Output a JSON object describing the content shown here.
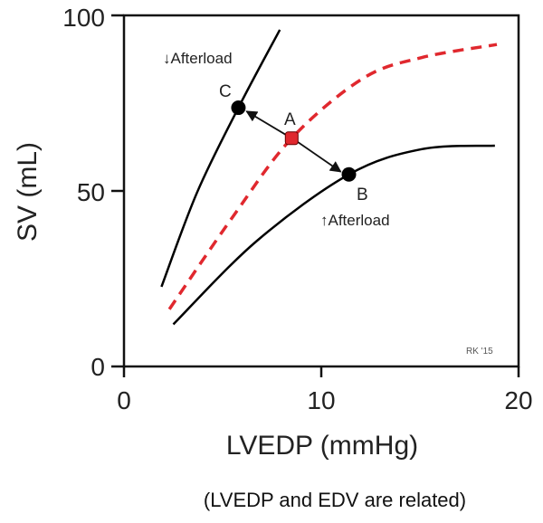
{
  "chart_data": {
    "type": "line",
    "xlabel": "LVEDP (mmHg)",
    "ylabel": "SV (mL)",
    "xlim": [
      0,
      20
    ],
    "ylim": [
      0,
      100
    ],
    "xticks": [
      "0",
      "10",
      "20"
    ],
    "yticks": [
      "0",
      "50",
      "100"
    ],
    "grid": false,
    "series": [
      {
        "style": "solid",
        "color": "#000000",
        "label": "↓Afterload",
        "x": [
          1.9,
          3.7,
          5.8,
          7.9
        ],
        "y": [
          22.7,
          49.5,
          73.7,
          95.9
        ]
      },
      {
        "style": "dashed",
        "color": "#e0282e",
        "x": [
          2.3,
          5.5,
          8.5,
          12.1,
          15.1,
          18.9
        ],
        "y": [
          16.3,
          42.5,
          65,
          82,
          88,
          91.7
        ]
      },
      {
        "style": "solid",
        "color": "#000000",
        "label": "↑Afterload",
        "x": [
          2.5,
          6.7,
          11.4,
          15.1,
          18.8
        ],
        "y": [
          12,
          35.6,
          54.7,
          61.9,
          62.9
        ]
      }
    ],
    "points": [
      {
        "label": "A",
        "x": 8.5,
        "y": 65,
        "color": "#e0282e"
      },
      {
        "label": "B",
        "x": 11.4,
        "y": 54.7,
        "color": "#000000"
      },
      {
        "label": "C",
        "x": 5.8,
        "y": 73.7,
        "color": "#000000"
      }
    ],
    "watermark": "RK '15",
    "caption": "(LVEDP and EDV are related)"
  }
}
